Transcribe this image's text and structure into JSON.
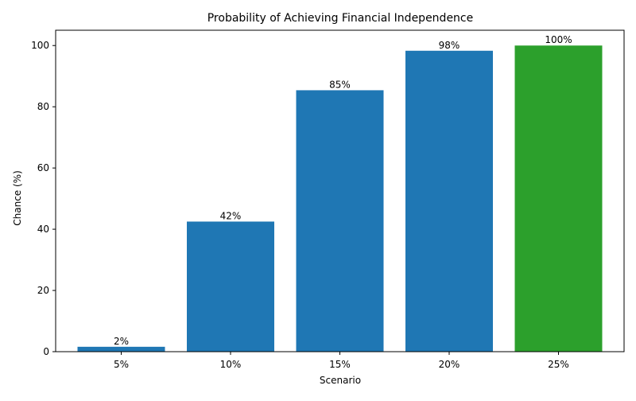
{
  "chart_data": {
    "type": "bar",
    "title": "Probability of Achieving Financial Independence",
    "xlabel": "Scenario",
    "ylabel": "Chance (%)",
    "categories": [
      "5%",
      "10%",
      "15%",
      "20%",
      "25%"
    ],
    "values": [
      1.6,
      42.5,
      85.4,
      98.3,
      100
    ],
    "data_labels": [
      "2%",
      "42%",
      "85%",
      "98%",
      "100%"
    ],
    "colors": [
      "#1f77b4",
      "#1f77b4",
      "#1f77b4",
      "#1f77b4",
      "#2ca02c"
    ],
    "yticks": [
      0,
      20,
      40,
      60,
      80,
      100
    ],
    "ylim": [
      0,
      105
    ],
    "grid": false,
    "legend": "none"
  }
}
